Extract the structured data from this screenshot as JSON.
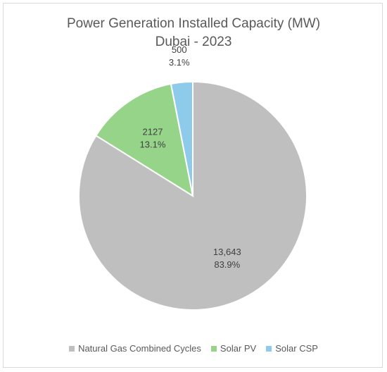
{
  "chart_data": {
    "type": "pie",
    "title": "Power Generation Installed Capacity (MW)",
    "subtitle": "Dubai - 2023",
    "categories": [
      "Natural Gas Combined Cycles",
      "Solar PV",
      "Solar CSP"
    ],
    "values": [
      13643,
      2127,
      500
    ],
    "value_labels": [
      "13,643",
      "2127",
      "500"
    ],
    "percent_labels": [
      "83.9%",
      "13.1%",
      "3.1%"
    ],
    "colors": [
      "#bfbfbf",
      "#96d48a",
      "#8ecbea"
    ],
    "start_angle_deg": 0,
    "direction": "clockwise",
    "legend": "bottom"
  }
}
